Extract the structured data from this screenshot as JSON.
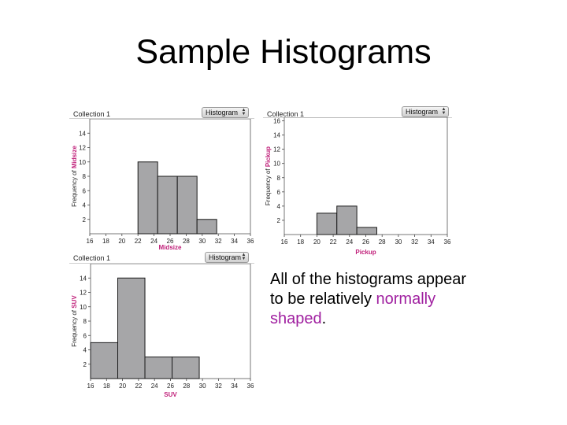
{
  "slide": {
    "title": "Sample Histograms",
    "caption_pre": "All of the histograms appear to be relatively ",
    "caption_highlight": "normally shaped",
    "caption_post": ".",
    "highlight_color": "#a020a0"
  },
  "panels": [
    {
      "collection": "Collection 1",
      "dropdown": "Histogram"
    },
    {
      "collection": "Collection 1",
      "dropdown": "Histogram"
    },
    {
      "collection": "Collection 1",
      "dropdown": "Histogram"
    }
  ],
  "colors": {
    "bar_fill": "#a6a6a8",
    "bar_stroke": "#1a1a1a",
    "label": "#c0207a"
  },
  "chart_data": [
    {
      "type": "bar",
      "categories": [
        "16-18",
        "18-20",
        "20-22",
        "22-24",
        "24-26",
        "26-28",
        "28-30",
        "30-32",
        "32-34",
        "34-36"
      ],
      "values": [
        0,
        0,
        0,
        0,
        10,
        8,
        8,
        2,
        0,
        0
      ],
      "x_ticks": [
        "16",
        "18",
        "20",
        "22",
        "24",
        "26",
        "28",
        "30",
        "32",
        "34",
        "36"
      ],
      "xlim": [
        16,
        36
      ],
      "bins": {
        "start": 22,
        "width": 2.45,
        "counts": [
          10,
          8,
          8,
          2
        ]
      },
      "y_ticks": [
        "2",
        "4",
        "6",
        "8",
        "10",
        "12",
        "14"
      ],
      "ylim": [
        0,
        16
      ],
      "title": "",
      "xlabel": "Midsize",
      "ylabel": "Frequency of Midsize"
    },
    {
      "type": "bar",
      "categories": [
        "16-18",
        "18-20",
        "20-22",
        "22-24",
        "24-26",
        "26-28",
        "28-30",
        "30-32",
        "32-34",
        "34-36"
      ],
      "values": [
        0,
        0,
        3,
        4,
        1,
        0,
        0,
        0,
        0,
        0
      ],
      "x_ticks": [
        "16",
        "18",
        "20",
        "22",
        "24",
        "26",
        "28",
        "30",
        "32",
        "34",
        "36"
      ],
      "xlim": [
        16,
        36
      ],
      "bins": {
        "start": 20,
        "width": 2.45,
        "counts": [
          3,
          4,
          1
        ]
      },
      "y_ticks": [
        "2",
        "4",
        "6",
        "8",
        "10",
        "12",
        "14",
        "16"
      ],
      "ylim": [
        0,
        16.5
      ],
      "title": "",
      "xlabel": "Pickup",
      "ylabel": "Frequency of Pickup"
    },
    {
      "type": "bar",
      "categories": [
        "16-18",
        "18-20",
        "20-22",
        "22-24",
        "24-26",
        "26-28",
        "28-30",
        "30-32",
        "32-34",
        "34-36"
      ],
      "values": [
        5,
        14,
        3,
        3,
        0,
        0,
        0,
        0,
        0,
        0
      ],
      "x_ticks": [
        "16",
        "18",
        "20",
        "22",
        "24",
        "26",
        "28",
        "30",
        "32",
        "34",
        "36"
      ],
      "xlim": [
        16,
        36
      ],
      "bins": {
        "start": 16,
        "width": 3.4,
        "counts": [
          5,
          14,
          3,
          3
        ]
      },
      "y_ticks": [
        "2",
        "4",
        "6",
        "8",
        "10",
        "12",
        "14"
      ],
      "ylim": [
        0,
        16
      ],
      "title": "",
      "xlabel": "SUV",
      "ylabel": "Frequency of SUV"
    }
  ]
}
